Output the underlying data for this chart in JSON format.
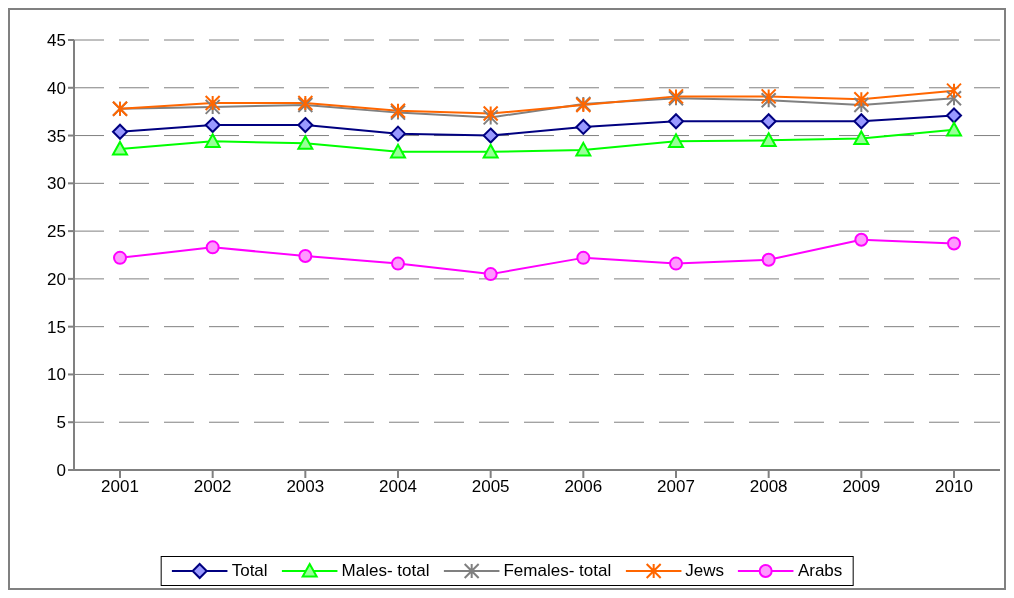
{
  "chart_data": {
    "type": "line",
    "categories": [
      "2001",
      "2002",
      "2003",
      "2004",
      "2005",
      "2006",
      "2007",
      "2008",
      "2009",
      "2010"
    ],
    "ylim": [
      0,
      45
    ],
    "yticks": [
      0,
      5,
      10,
      15,
      20,
      25,
      30,
      35,
      40,
      45
    ],
    "grid": "y",
    "legend": "bottom",
    "series": [
      {
        "name": "Total",
        "color": "#000080",
        "marker": "diamond",
        "values": [
          35.4,
          36.1,
          36.1,
          35.2,
          35.0,
          35.9,
          36.5,
          36.5,
          36.5,
          37.1
        ]
      },
      {
        "name": "Males- total",
        "color": "#00ff00",
        "marker": "triangle",
        "values": [
          33.6,
          34.4,
          34.2,
          33.3,
          33.3,
          33.5,
          34.4,
          34.5,
          34.7,
          35.6
        ]
      },
      {
        "name": "Females- total",
        "color": "#808080",
        "marker": "cross",
        "values": [
          37.8,
          38.0,
          38.2,
          37.4,
          36.9,
          38.3,
          38.9,
          38.7,
          38.2,
          38.9
        ]
      },
      {
        "name": "Jews",
        "color": "#ff6600",
        "marker": "cross",
        "values": [
          37.8,
          38.4,
          38.4,
          37.6,
          37.3,
          38.2,
          39.1,
          39.1,
          38.8,
          39.7
        ]
      },
      {
        "name": "Arabs",
        "color": "#ff00ff",
        "marker": "circle",
        "values": [
          22.2,
          23.3,
          22.4,
          21.6,
          20.5,
          22.2,
          21.6,
          22.0,
          24.1,
          23.7
        ]
      }
    ]
  }
}
